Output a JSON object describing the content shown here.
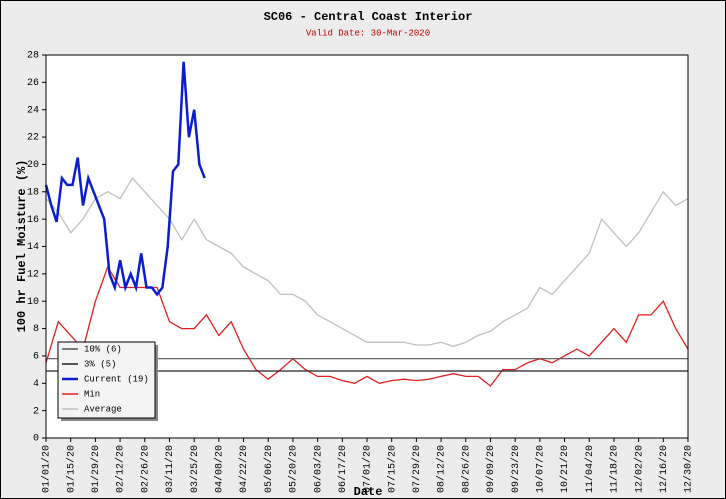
{
  "chart_data": {
    "type": "line",
    "title": "SC06 - Central Coast Interior",
    "subtitle": "Valid Date: 30-Mar-2020",
    "xlabel": "Date",
    "ylabel": "100 hr Fuel Moisture (%)",
    "xlim": [
      0,
      364
    ],
    "ylim": [
      0,
      28
    ],
    "yticks": [
      0,
      2,
      4,
      6,
      8,
      10,
      12,
      14,
      16,
      18,
      20,
      22,
      24,
      26,
      28
    ],
    "xticks": [
      {
        "value": 0,
        "label": "01/01/20"
      },
      {
        "value": 14,
        "label": "01/15/20"
      },
      {
        "value": 28,
        "label": "01/29/20"
      },
      {
        "value": 42,
        "label": "02/12/20"
      },
      {
        "value": 56,
        "label": "02/26/20"
      },
      {
        "value": 70,
        "label": "03/11/20"
      },
      {
        "value": 84,
        "label": "03/25/20"
      },
      {
        "value": 98,
        "label": "04/08/20"
      },
      {
        "value": 112,
        "label": "04/22/20"
      },
      {
        "value": 126,
        "label": "05/06/20"
      },
      {
        "value": 140,
        "label": "05/20/20"
      },
      {
        "value": 154,
        "label": "06/03/20"
      },
      {
        "value": 168,
        "label": "06/17/20"
      },
      {
        "value": 182,
        "label": "07/01/20"
      },
      {
        "value": 196,
        "label": "07/15/20"
      },
      {
        "value": 210,
        "label": "07/29/20"
      },
      {
        "value": 224,
        "label": "08/12/20"
      },
      {
        "value": 238,
        "label": "08/26/20"
      },
      {
        "value": 252,
        "label": "09/09/20"
      },
      {
        "value": 266,
        "label": "09/23/20"
      },
      {
        "value": 280,
        "label": "10/07/20"
      },
      {
        "value": 294,
        "label": "10/21/20"
      },
      {
        "value": 308,
        "label": "11/04/20"
      },
      {
        "value": 322,
        "label": "11/18/20"
      },
      {
        "value": 336,
        "label": "12/02/20"
      },
      {
        "value": 350,
        "label": "12/16/20"
      },
      {
        "value": 364,
        "label": "12/30/20"
      }
    ],
    "hlines": [
      {
        "name": "10% (6)",
        "color": "#555555",
        "value": 5.8
      },
      {
        "name": "3% (5)",
        "color": "#222222",
        "value": 4.9
      }
    ],
    "series": [
      {
        "name": "Average",
        "color": "#c0c0c0",
        "x": [
          0,
          7,
          14,
          21,
          28,
          35,
          42,
          49,
          56,
          63,
          70,
          77,
          84,
          91,
          98,
          105,
          112,
          119,
          126,
          133,
          140,
          147,
          154,
          161,
          168,
          175,
          182,
          189,
          196,
          203,
          210,
          217,
          224,
          231,
          238,
          245,
          252,
          259,
          266,
          273,
          280,
          287,
          294,
          301,
          308,
          315,
          322,
          329,
          336,
          343,
          350,
          357,
          364
        ],
        "values": [
          17.5,
          16.5,
          15,
          16,
          17.5,
          18,
          17.5,
          19,
          18,
          17,
          16,
          14.5,
          16,
          14.5,
          14,
          13.5,
          12.5,
          12,
          11.5,
          10.5,
          10.5,
          10,
          9,
          8.5,
          8,
          7.5,
          7,
          7,
          7,
          7,
          6.8,
          6.8,
          7,
          6.7,
          7,
          7.5,
          7.8,
          8.5,
          9,
          9.5,
          11,
          10.5,
          11.5,
          12.5,
          13.5,
          16,
          15,
          14,
          15,
          16.5,
          18,
          17,
          17.5
        ]
      },
      {
        "name": "Min",
        "color": "#e02020",
        "x": [
          0,
          7,
          14,
          21,
          28,
          35,
          42,
          49,
          56,
          63,
          70,
          77,
          84,
          91,
          98,
          105,
          112,
          119,
          126,
          133,
          140,
          147,
          154,
          161,
          168,
          175,
          182,
          189,
          196,
          203,
          210,
          217,
          224,
          231,
          238,
          245,
          252,
          259,
          266,
          273,
          280,
          287,
          294,
          301,
          308,
          315,
          322,
          329,
          336,
          343,
          350,
          357,
          364
        ],
        "values": [
          5.5,
          8.5,
          7.5,
          6.5,
          10,
          12.5,
          11,
          11,
          11,
          11,
          8.5,
          8,
          8,
          9,
          7.5,
          8.5,
          6.5,
          5,
          4.3,
          5,
          5.8,
          5,
          4.5,
          4.5,
          4.2,
          4,
          4.5,
          4,
          4.2,
          4.3,
          4.2,
          4.3,
          4.5,
          4.7,
          4.5,
          4.5,
          3.8,
          5,
          5,
          5.5,
          5.8,
          5.5,
          6,
          6.5,
          6,
          7,
          8,
          7,
          9,
          9,
          10,
          8,
          6.5
        ]
      },
      {
        "name": "Current (19)",
        "color": "#0a1ed0",
        "x": [
          0,
          3,
          6,
          9,
          12,
          15,
          18,
          21,
          24,
          27,
          30,
          33,
          36,
          39,
          42,
          45,
          48,
          51,
          54,
          57,
          60,
          63,
          66,
          69,
          72,
          75,
          78,
          81,
          84,
          87,
          90
        ],
        "values": [
          18.5,
          17,
          15.8,
          19,
          18.5,
          18.5,
          20.5,
          17,
          19,
          18,
          17,
          16,
          12,
          11,
          13,
          11,
          12,
          11,
          13.5,
          11,
          11,
          10.5,
          11,
          14,
          19.5,
          20,
          27.5,
          22,
          24,
          20,
          19
        ]
      }
    ],
    "legend_entries": [
      "10% (6)",
      "3% (5)",
      "Current (19)",
      "Min",
      "Average"
    ]
  }
}
